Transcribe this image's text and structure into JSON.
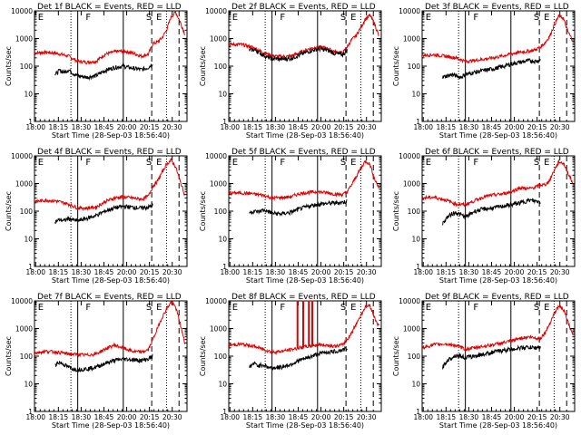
{
  "chart_data": {
    "type": "line",
    "layout": "3x3 grid of log-scale count-rate panels",
    "yscale": "log",
    "ylim": [
      1,
      10000
    ],
    "y_ticks": [
      "1",
      "10",
      "100",
      "1000",
      "10000"
    ],
    "ylabel": "Counts/sec",
    "xlabel": "Start Time (28-Sep-03 18:56:40)",
    "x_tick_labels": [
      "18:00",
      "18:15",
      "18:30",
      "18:45",
      "20:00",
      "20:15",
      "20:30"
    ],
    "x_domain": [
      0,
      6.7
    ],
    "legend": "BLACK = Events, RED = LLD",
    "series_names": [
      "Events",
      "LLD"
    ],
    "markers": {
      "E": 0.15,
      "F": 2.25,
      "S": 4.9,
      "E2": 5.35
    },
    "panels": [
      {
        "title": "Det 1f BLACK = Events, RED = LLD",
        "vlines": {
          "dotted": [
            1.6,
            5.8
          ],
          "solid": [
            1.9,
            3.9
          ],
          "dashed": [
            5.15,
            6.35
          ]
        },
        "red": {
          "x": [
            0,
            0.5,
            1,
            1.5,
            1.9,
            2.3,
            2.7,
            3.1,
            3.5,
            3.9,
            4.3,
            4.7,
            5.0,
            5.2,
            5.4,
            5.6,
            5.8,
            6.0,
            6.2,
            6.4,
            6.6
          ],
          "y": [
            300,
            320,
            290,
            230,
            150,
            140,
            150,
            270,
            330,
            360,
            300,
            230,
            270,
            650,
            750,
            1050,
            2000,
            6000,
            9000,
            4000,
            1500
          ]
        },
        "black": {
          "x": [
            0.9,
            1.1,
            1.3,
            1.5,
            1.7,
            1.9,
            2.3,
            2.7,
            3.1,
            3.5,
            3.9,
            4.3,
            4.7,
            5.0,
            5.2
          ],
          "y": [
            50,
            70,
            60,
            75,
            55,
            45,
            40,
            45,
            70,
            90,
            100,
            85,
            75,
            90,
            130
          ]
        }
      },
      {
        "title": "Det 2f BLACK = Events, RED = LLD",
        "vlines": {
          "dotted": [
            1.6,
            5.8
          ],
          "solid": [
            1.9,
            3.9
          ],
          "dashed": [
            5.15,
            6.35
          ]
        },
        "red": {
          "x": [
            0,
            0.5,
            1,
            1.5,
            1.9,
            2.3,
            2.7,
            3.1,
            3.5,
            3.9,
            4.3,
            4.7,
            5.0,
            5.2,
            5.4,
            5.6,
            5.8,
            6.0,
            6.2,
            6.4,
            6.6
          ],
          "y": [
            600,
            620,
            500,
            320,
            240,
            220,
            230,
            300,
            420,
            500,
            450,
            330,
            300,
            500,
            900,
            1300,
            2500,
            5000,
            7000,
            3500,
            1200
          ]
        },
        "black": {
          "x": [
            0.9,
            1.1,
            1.3,
            1.5,
            1.7,
            1.9,
            2.3,
            2.7,
            3.1,
            3.5,
            3.9,
            4.3,
            4.7,
            5.0,
            5.2
          ],
          "y": [
            380,
            400,
            330,
            260,
            210,
            190,
            180,
            190,
            250,
            340,
            420,
            390,
            280,
            260,
            370
          ]
        }
      },
      {
        "title": "Det 3f BLACK = Events, RED = LLD",
        "vlines": {
          "dotted": [
            1.6,
            5.8
          ],
          "solid": [
            1.9,
            3.9
          ],
          "dashed": [
            5.15,
            6.35
          ]
        },
        "red": {
          "x": [
            0,
            0.5,
            1,
            1.5,
            1.9,
            2.3,
            2.7,
            3.1,
            3.5,
            3.9,
            4.3,
            4.7,
            5.0,
            5.2,
            5.4,
            5.6,
            5.8,
            6.0,
            6.2,
            6.4,
            6.6
          ],
          "y": [
            250,
            260,
            230,
            200,
            150,
            160,
            180,
            200,
            230,
            280,
            320,
            350,
            400,
            500,
            700,
            1200,
            3000,
            6500,
            5500,
            1800,
            900
          ]
        },
        "black": {
          "x": [
            0.9,
            1.1,
            1.3,
            1.5,
            1.7,
            1.9,
            2.3,
            2.7,
            3.1,
            3.5,
            3.9,
            4.3,
            4.7,
            5.0,
            5.2
          ],
          "y": [
            40,
            45,
            50,
            45,
            40,
            50,
            60,
            70,
            80,
            95,
            120,
            140,
            160,
            150,
            170
          ]
        }
      },
      {
        "title": "Det 4f BLACK = Events, RED = LLD",
        "vlines": {
          "dotted": [
            1.6,
            5.8
          ],
          "solid": [
            1.9,
            3.9
          ],
          "dashed": [
            5.15,
            6.35
          ]
        },
        "red": {
          "x": [
            0,
            0.5,
            1,
            1.5,
            1.9,
            2.3,
            2.7,
            3.1,
            3.5,
            3.9,
            4.3,
            4.7,
            5.0,
            5.2,
            5.4,
            5.6,
            5.8,
            6.0,
            6.2,
            6.4,
            6.6
          ],
          "y": [
            220,
            250,
            230,
            180,
            130,
            130,
            140,
            220,
            300,
            330,
            300,
            270,
            350,
            800,
            1200,
            2500,
            5000,
            7000,
            4000,
            1200,
            400
          ]
        },
        "black": {
          "x": [
            0.9,
            1.1,
            1.3,
            1.5,
            1.7,
            1.9,
            2.3,
            2.7,
            3.1,
            3.5,
            3.9,
            4.3,
            4.7,
            5.0,
            5.2
          ],
          "y": [
            40,
            50,
            45,
            55,
            48,
            45,
            55,
            70,
            100,
            130,
            150,
            140,
            130,
            140,
            160
          ]
        }
      },
      {
        "title": "Det 5f BLACK = Events, RED = LLD",
        "vlines": {
          "dotted": [
            1.6,
            5.8
          ],
          "solid": [
            1.9,
            3.9
          ],
          "dashed": [
            5.15,
            6.35
          ]
        },
        "red": {
          "x": [
            0,
            0.5,
            1,
            1.5,
            1.9,
            2.3,
            2.7,
            3.1,
            3.5,
            3.9,
            4.3,
            4.7,
            5.0,
            5.2,
            5.4,
            5.6,
            5.8,
            6.0,
            6.2,
            6.4,
            6.6
          ],
          "y": [
            450,
            460,
            430,
            380,
            300,
            310,
            330,
            430,
            480,
            500,
            470,
            410,
            400,
            500,
            900,
            1800,
            3500,
            6500,
            5000,
            1500,
            700
          ]
        },
        "black": {
          "x": [
            0.9,
            1.1,
            1.3,
            1.5,
            1.7,
            1.9,
            2.3,
            2.7,
            3.1,
            3.5,
            3.9,
            4.3,
            4.7,
            5.0,
            5.2
          ],
          "y": [
            90,
            100,
            95,
            110,
            100,
            85,
            80,
            90,
            120,
            150,
            180,
            190,
            200,
            210,
            230
          ]
        }
      },
      {
        "title": "Det 6f BLACK = Events, RED = LLD",
        "vlines": {
          "dotted": [
            1.6,
            5.8
          ],
          "solid": [
            1.9,
            3.9
          ],
          "dashed": [
            5.15,
            6.35
          ]
        },
        "red": {
          "x": [
            0,
            0.5,
            1,
            1.5,
            1.9,
            2.3,
            2.7,
            3.1,
            3.5,
            3.9,
            4.3,
            4.7,
            5.0,
            5.2,
            5.4,
            5.6,
            5.8,
            6.0,
            6.2,
            6.4,
            6.6
          ],
          "y": [
            300,
            320,
            260,
            180,
            170,
            240,
            330,
            380,
            420,
            500,
            700,
            650,
            750,
            900,
            900,
            1300,
            3000,
            6000,
            5500,
            2500,
            1100
          ]
        },
        "black": {
          "x": [
            0.9,
            1.1,
            1.3,
            1.5,
            1.7,
            1.9,
            2.3,
            2.7,
            3.1,
            3.5,
            3.9,
            4.3,
            4.7,
            5.0,
            5.2
          ],
          "y": [
            35,
            60,
            80,
            90,
            75,
            60,
            100,
            120,
            130,
            150,
            170,
            200,
            250,
            230,
            220
          ]
        }
      },
      {
        "title": "Det 7f BLACK = Events, RED = LLD",
        "vlines": {
          "dotted": [
            1.6,
            5.8
          ],
          "solid": [
            1.9,
            3.9
          ],
          "dashed": [
            5.15,
            6.35
          ]
        },
        "red": {
          "x": [
            0,
            0.5,
            1,
            1.5,
            1.9,
            2.3,
            2.7,
            3.1,
            3.5,
            3.9,
            4.3,
            4.7,
            5.0,
            5.2,
            5.4,
            5.6,
            5.8,
            6.0,
            6.2,
            6.4,
            6.6
          ],
          "y": [
            130,
            150,
            140,
            120,
            115,
            110,
            120,
            180,
            250,
            200,
            150,
            140,
            170,
            400,
            1000,
            2500,
            5000,
            9000,
            6000,
            1500,
            300
          ]
        },
        "black": {
          "x": [
            0.9,
            1.1,
            1.3,
            1.5,
            1.7,
            1.9,
            2.3,
            2.7,
            3.1,
            3.5,
            3.9,
            4.3,
            4.7,
            5.0,
            5.2
          ],
          "y": [
            50,
            60,
            50,
            40,
            35,
            33,
            35,
            40,
            55,
            70,
            80,
            75,
            70,
            80,
            100
          ]
        }
      },
      {
        "title": "Det 8f BLACK = Events, RED = LLD",
        "vlines": {
          "dotted": [
            1.6,
            5.8
          ],
          "solid": [
            1.9,
            3.9
          ],
          "dashed": [
            5.15,
            6.35
          ]
        },
        "red": {
          "x": [
            0,
            0.5,
            1,
            1.5,
            1.9,
            2.3,
            2.7,
            3.1,
            3.5,
            3.9,
            4.3,
            4.7,
            5.0,
            5.2,
            5.4,
            5.6,
            5.8,
            6.0,
            6.2,
            6.4,
            6.6
          ],
          "y": [
            250,
            270,
            240,
            180,
            140,
            150,
            170,
            200,
            230,
            260,
            250,
            230,
            260,
            400,
            700,
            1500,
            3000,
            6000,
            7000,
            2500,
            1200
          ]
        },
        "red_spikes": [
          3.0,
          3.25,
          3.5,
          3.65
        ],
        "black": {
          "x": [
            0.9,
            1.1,
            1.3,
            1.5,
            1.7,
            1.9,
            2.3,
            2.7,
            3.1,
            3.5,
            3.9,
            4.3,
            4.7,
            5.0,
            5.2
          ],
          "y": [
            40,
            55,
            45,
            50,
            40,
            38,
            40,
            50,
            70,
            90,
            120,
            140,
            150,
            170,
            190
          ]
        }
      },
      {
        "title": "Det 9f BLACK = Events, RED = LLD",
        "vlines": {
          "dotted": [
            1.6,
            5.8
          ],
          "solid": [
            1.9,
            3.9
          ],
          "dashed": [
            5.15,
            6.35
          ]
        },
        "red": {
          "x": [
            0,
            0.5,
            1,
            1.5,
            1.9,
            2.3,
            2.7,
            3.1,
            3.5,
            3.9,
            4.3,
            4.7,
            5.0,
            5.2,
            5.4,
            5.6,
            5.8,
            6.0,
            6.2,
            6.4,
            6.6
          ],
          "y": [
            200,
            260,
            280,
            240,
            180,
            200,
            230,
            260,
            300,
            350,
            450,
            500,
            450,
            450,
            700,
            1500,
            3500,
            6500,
            5000,
            1800,
            600
          ]
        },
        "black": {
          "x": [
            0.9,
            1.1,
            1.3,
            1.5,
            1.7,
            1.9,
            2.3,
            2.7,
            3.1,
            3.5,
            3.9,
            4.3,
            4.7,
            5.0,
            5.2
          ],
          "y": [
            40,
            70,
            90,
            110,
            100,
            90,
            100,
            120,
            140,
            160,
            180,
            200,
            210,
            200,
            220
          ]
        }
      }
    ]
  }
}
